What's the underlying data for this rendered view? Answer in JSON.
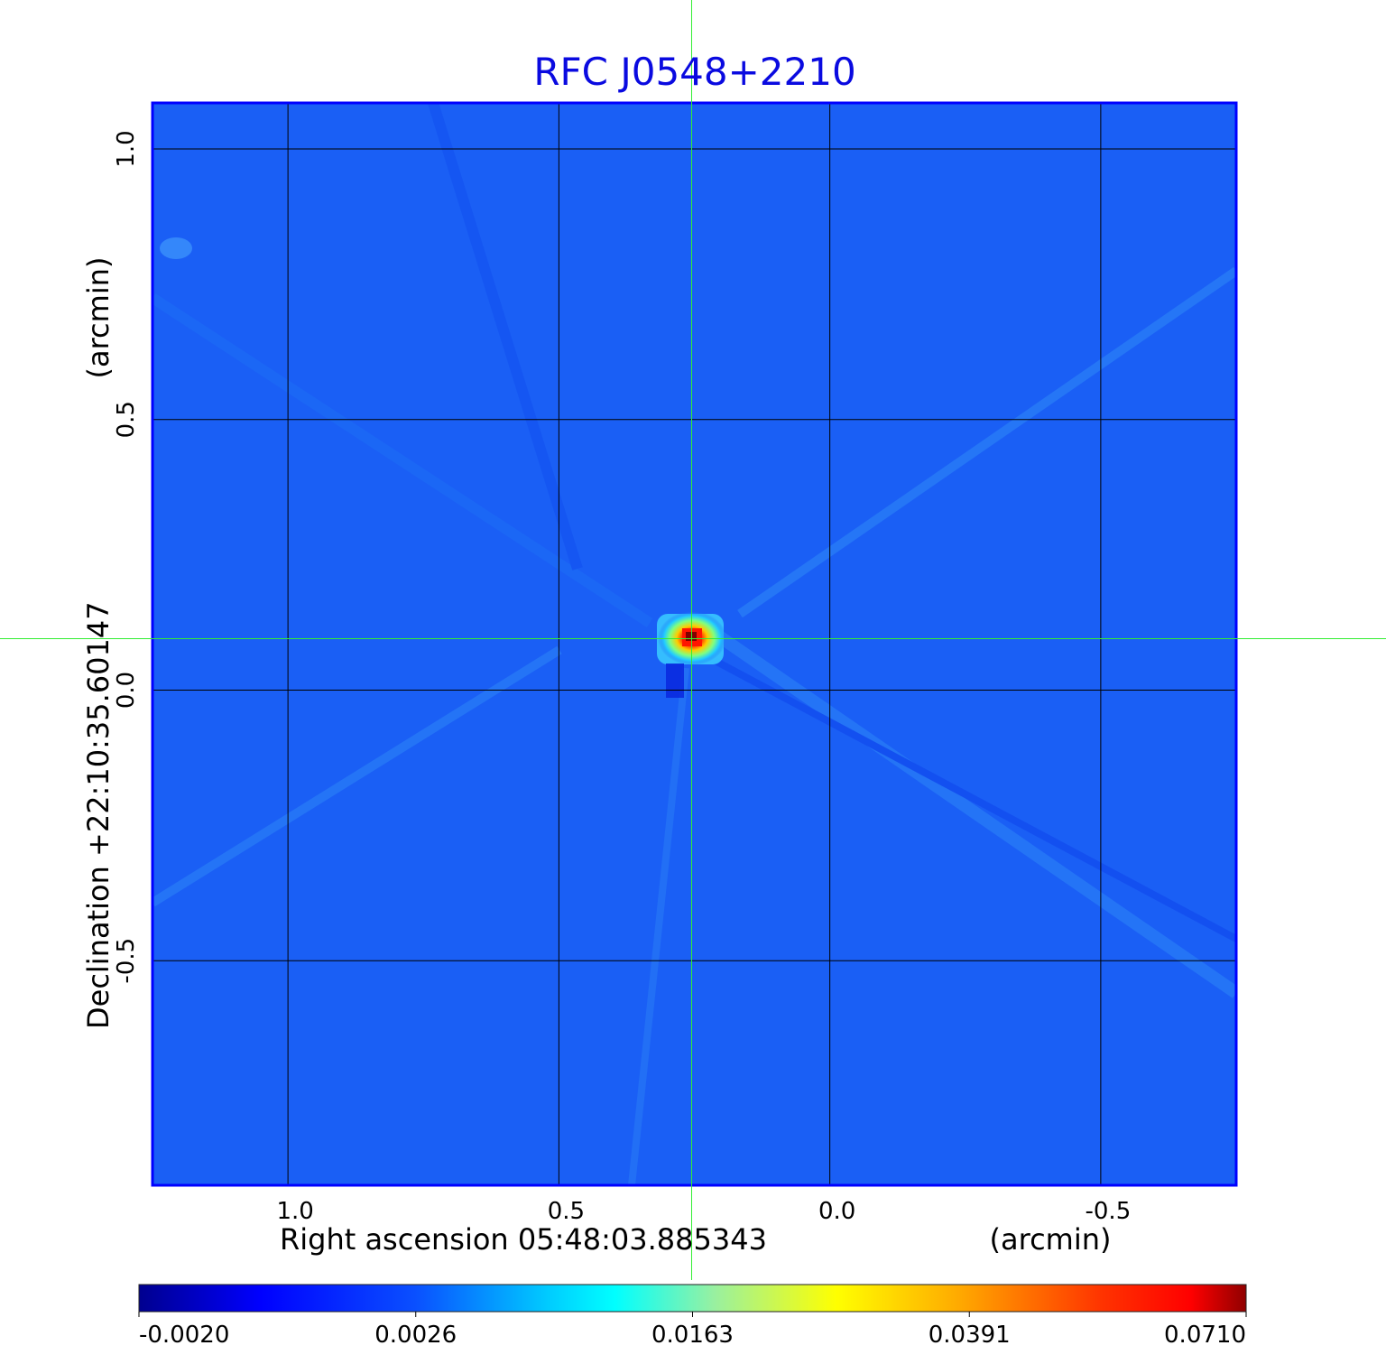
{
  "chart_data": {
    "type": "heatmap",
    "title": "RFC J0548+2210",
    "xlabel": "Right ascension  05:48:03.885343",
    "xunit": "(arcmin)",
    "ylabel": "Declination  +22:10:35.60147",
    "yunit": "(arcmin)",
    "xlim": [
      1.25,
      -0.75
    ],
    "ylim": [
      -0.915,
      1.085
    ],
    "x_ticks": [
      1.0,
      0.5,
      0.0,
      -0.5
    ],
    "x_tick_labels": [
      "1.0",
      "0.5",
      "0.0",
      "-0.5"
    ],
    "y_ticks": [
      1.0,
      0.5,
      0.0,
      -0.5
    ],
    "y_tick_labels": [
      "1.0",
      "0.5",
      "0.0",
      "-0.5"
    ],
    "grid": true,
    "crosshair": {
      "x": 0.255,
      "y": 0.095
    },
    "peak": {
      "x": 0.255,
      "y": 0.095,
      "value": 0.071
    },
    "colorbar": {
      "min": -0.002,
      "max": 0.071,
      "ticks": [
        -0.002,
        0.0026,
        0.0163,
        0.0391,
        0.071
      ],
      "tick_labels": [
        "-0.0020",
        "0.0026",
        "0.0163",
        "0.0391",
        "0.0710"
      ],
      "colors": [
        "#00008f",
        "#0000ff",
        "#00ffff",
        "#ffff00",
        "#ff0000",
        "#800000"
      ]
    },
    "colors": {
      "title": "#0a0ae0",
      "crosshair": "#33ee33",
      "background_map": "#1a5ff5",
      "frame": "#0000ff"
    }
  }
}
